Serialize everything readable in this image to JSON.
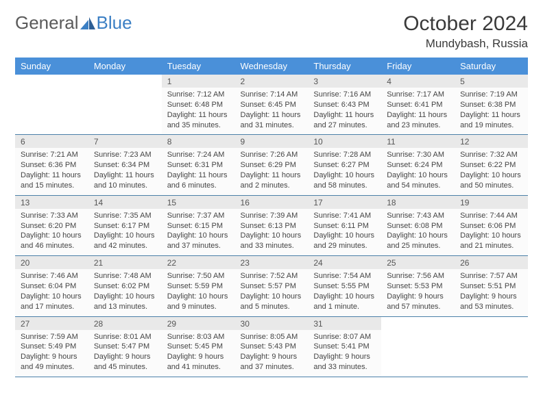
{
  "logo": {
    "text1": "General",
    "text2": "Blue"
  },
  "title": "October 2024",
  "location": "Mundybash, Russia",
  "weekdays": [
    "Sunday",
    "Monday",
    "Tuesday",
    "Wednesday",
    "Thursday",
    "Friday",
    "Saturday"
  ],
  "colors": {
    "header_bg": "#4a90d9",
    "header_text": "#ffffff",
    "daynum_bg": "#e9e9e9",
    "detail_bg": "#fbfbfb",
    "row_border": "#4a7fa8",
    "logo_gray": "#5a5a5a",
    "logo_blue": "#3b7fc4",
    "text": "#444444"
  },
  "weeks": [
    [
      {
        "empty": true
      },
      {
        "empty": true
      },
      {
        "num": "1",
        "sunrise": "Sunrise: 7:12 AM",
        "sunset": "Sunset: 6:48 PM",
        "daylight": "Daylight: 11 hours and 35 minutes."
      },
      {
        "num": "2",
        "sunrise": "Sunrise: 7:14 AM",
        "sunset": "Sunset: 6:45 PM",
        "daylight": "Daylight: 11 hours and 31 minutes."
      },
      {
        "num": "3",
        "sunrise": "Sunrise: 7:16 AM",
        "sunset": "Sunset: 6:43 PM",
        "daylight": "Daylight: 11 hours and 27 minutes."
      },
      {
        "num": "4",
        "sunrise": "Sunrise: 7:17 AM",
        "sunset": "Sunset: 6:41 PM",
        "daylight": "Daylight: 11 hours and 23 minutes."
      },
      {
        "num": "5",
        "sunrise": "Sunrise: 7:19 AM",
        "sunset": "Sunset: 6:38 PM",
        "daylight": "Daylight: 11 hours and 19 minutes."
      }
    ],
    [
      {
        "num": "6",
        "sunrise": "Sunrise: 7:21 AM",
        "sunset": "Sunset: 6:36 PM",
        "daylight": "Daylight: 11 hours and 15 minutes."
      },
      {
        "num": "7",
        "sunrise": "Sunrise: 7:23 AM",
        "sunset": "Sunset: 6:34 PM",
        "daylight": "Daylight: 11 hours and 10 minutes."
      },
      {
        "num": "8",
        "sunrise": "Sunrise: 7:24 AM",
        "sunset": "Sunset: 6:31 PM",
        "daylight": "Daylight: 11 hours and 6 minutes."
      },
      {
        "num": "9",
        "sunrise": "Sunrise: 7:26 AM",
        "sunset": "Sunset: 6:29 PM",
        "daylight": "Daylight: 11 hours and 2 minutes."
      },
      {
        "num": "10",
        "sunrise": "Sunrise: 7:28 AM",
        "sunset": "Sunset: 6:27 PM",
        "daylight": "Daylight: 10 hours and 58 minutes."
      },
      {
        "num": "11",
        "sunrise": "Sunrise: 7:30 AM",
        "sunset": "Sunset: 6:24 PM",
        "daylight": "Daylight: 10 hours and 54 minutes."
      },
      {
        "num": "12",
        "sunrise": "Sunrise: 7:32 AM",
        "sunset": "Sunset: 6:22 PM",
        "daylight": "Daylight: 10 hours and 50 minutes."
      }
    ],
    [
      {
        "num": "13",
        "sunrise": "Sunrise: 7:33 AM",
        "sunset": "Sunset: 6:20 PM",
        "daylight": "Daylight: 10 hours and 46 minutes."
      },
      {
        "num": "14",
        "sunrise": "Sunrise: 7:35 AM",
        "sunset": "Sunset: 6:17 PM",
        "daylight": "Daylight: 10 hours and 42 minutes."
      },
      {
        "num": "15",
        "sunrise": "Sunrise: 7:37 AM",
        "sunset": "Sunset: 6:15 PM",
        "daylight": "Daylight: 10 hours and 37 minutes."
      },
      {
        "num": "16",
        "sunrise": "Sunrise: 7:39 AM",
        "sunset": "Sunset: 6:13 PM",
        "daylight": "Daylight: 10 hours and 33 minutes."
      },
      {
        "num": "17",
        "sunrise": "Sunrise: 7:41 AM",
        "sunset": "Sunset: 6:11 PM",
        "daylight": "Daylight: 10 hours and 29 minutes."
      },
      {
        "num": "18",
        "sunrise": "Sunrise: 7:43 AM",
        "sunset": "Sunset: 6:08 PM",
        "daylight": "Daylight: 10 hours and 25 minutes."
      },
      {
        "num": "19",
        "sunrise": "Sunrise: 7:44 AM",
        "sunset": "Sunset: 6:06 PM",
        "daylight": "Daylight: 10 hours and 21 minutes."
      }
    ],
    [
      {
        "num": "20",
        "sunrise": "Sunrise: 7:46 AM",
        "sunset": "Sunset: 6:04 PM",
        "daylight": "Daylight: 10 hours and 17 minutes."
      },
      {
        "num": "21",
        "sunrise": "Sunrise: 7:48 AM",
        "sunset": "Sunset: 6:02 PM",
        "daylight": "Daylight: 10 hours and 13 minutes."
      },
      {
        "num": "22",
        "sunrise": "Sunrise: 7:50 AM",
        "sunset": "Sunset: 5:59 PM",
        "daylight": "Daylight: 10 hours and 9 minutes."
      },
      {
        "num": "23",
        "sunrise": "Sunrise: 7:52 AM",
        "sunset": "Sunset: 5:57 PM",
        "daylight": "Daylight: 10 hours and 5 minutes."
      },
      {
        "num": "24",
        "sunrise": "Sunrise: 7:54 AM",
        "sunset": "Sunset: 5:55 PM",
        "daylight": "Daylight: 10 hours and 1 minute."
      },
      {
        "num": "25",
        "sunrise": "Sunrise: 7:56 AM",
        "sunset": "Sunset: 5:53 PM",
        "daylight": "Daylight: 9 hours and 57 minutes."
      },
      {
        "num": "26",
        "sunrise": "Sunrise: 7:57 AM",
        "sunset": "Sunset: 5:51 PM",
        "daylight": "Daylight: 9 hours and 53 minutes."
      }
    ],
    [
      {
        "num": "27",
        "sunrise": "Sunrise: 7:59 AM",
        "sunset": "Sunset: 5:49 PM",
        "daylight": "Daylight: 9 hours and 49 minutes."
      },
      {
        "num": "28",
        "sunrise": "Sunrise: 8:01 AM",
        "sunset": "Sunset: 5:47 PM",
        "daylight": "Daylight: 9 hours and 45 minutes."
      },
      {
        "num": "29",
        "sunrise": "Sunrise: 8:03 AM",
        "sunset": "Sunset: 5:45 PM",
        "daylight": "Daylight: 9 hours and 41 minutes."
      },
      {
        "num": "30",
        "sunrise": "Sunrise: 8:05 AM",
        "sunset": "Sunset: 5:43 PM",
        "daylight": "Daylight: 9 hours and 37 minutes."
      },
      {
        "num": "31",
        "sunrise": "Sunrise: 8:07 AM",
        "sunset": "Sunset: 5:41 PM",
        "daylight": "Daylight: 9 hours and 33 minutes."
      },
      {
        "empty": true
      },
      {
        "empty": true
      }
    ]
  ]
}
